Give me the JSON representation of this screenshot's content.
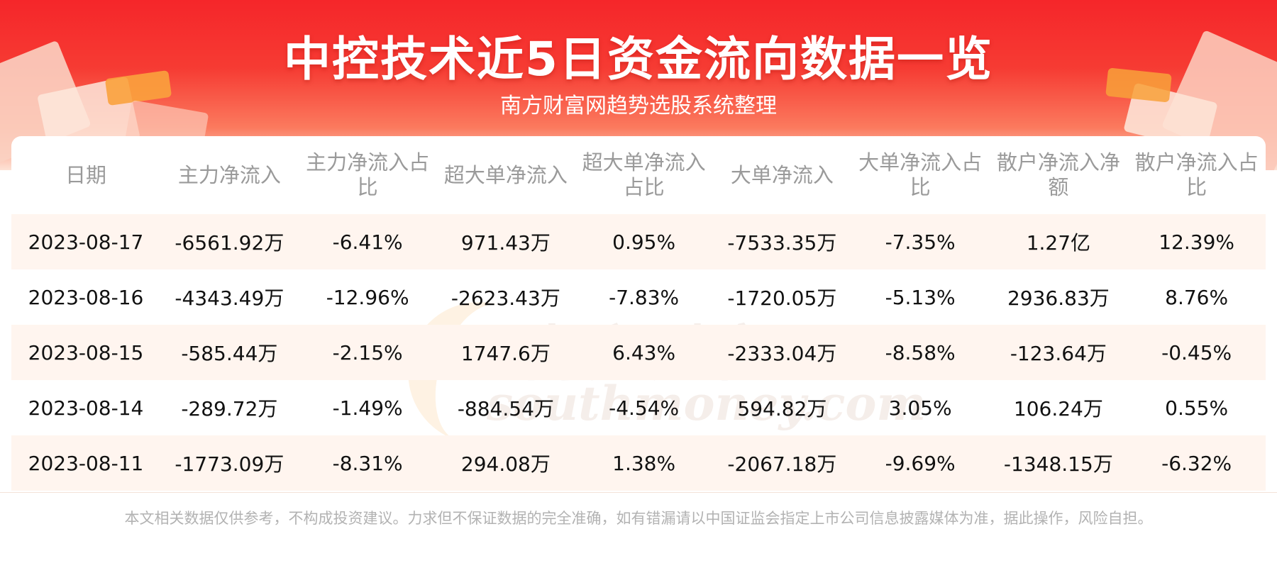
{
  "header": {
    "title": "中控技术近5日资金流向数据一览",
    "subtitle": "南方财富网趋势选股系统整理"
  },
  "table": {
    "columns": [
      "日期",
      "主力净流入",
      "主力净流入占比",
      "超大单净流入",
      "超大单净流入占比",
      "大单净流入",
      "大单净流入占比",
      "散户净流入净额",
      "散户净流入占比"
    ],
    "rows": [
      [
        "2023-08-17",
        "-6561.92万",
        "-6.41%",
        "971.43万",
        "0.95%",
        "-7533.35万",
        "-7.35%",
        "1.27亿",
        "12.39%"
      ],
      [
        "2023-08-16",
        "-4343.49万",
        "-12.96%",
        "-2623.43万",
        "-7.83%",
        "-1720.05万",
        "-5.13%",
        "2936.83万",
        "8.76%"
      ],
      [
        "2023-08-15",
        "-585.44万",
        "-2.15%",
        "1747.6万",
        "6.43%",
        "-2333.04万",
        "-8.58%",
        "-123.64万",
        "-0.45%"
      ],
      [
        "2023-08-14",
        "-289.72万",
        "-1.49%",
        "-884.54万",
        "-4.54%",
        "594.82万",
        "3.05%",
        "106.24万",
        "0.55%"
      ],
      [
        "2023-08-11",
        "-1773.09万",
        "-8.31%",
        "294.08万",
        "1.38%",
        "-2067.18万",
        "-9.69%",
        "-1348.15万",
        "-6.32%"
      ]
    ]
  },
  "watermark": {
    "cn": "南方财富网",
    "en": "southmoney.com"
  },
  "footer": {
    "disclaimer": "本文相关数据仅供参考，不构成投资建议。力求但不保证数据的完全准确，如有错漏请以中国证监会指定上市公司信息披露媒体为准，据此操作，风险自担。"
  },
  "colors": {
    "banner_red": "#f5262a",
    "stripe": "#fff5ef",
    "header_text": "#9a9a9a"
  }
}
